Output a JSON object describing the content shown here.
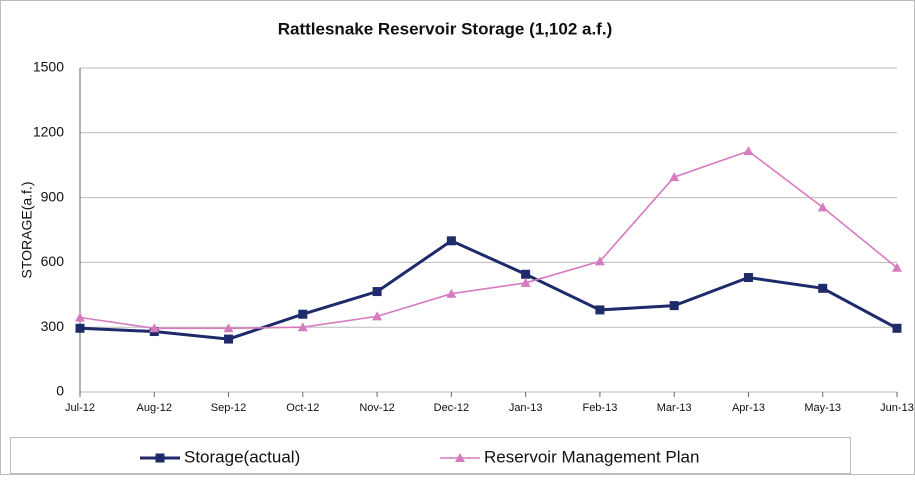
{
  "chart_data": {
    "type": "line",
    "title": "Rattlesnake Reservoir Storage (1,102 a.f.)",
    "y_label": "STORAGE(a.f.)",
    "categories": [
      "Jul-12",
      "Aug-12",
      "Sep-12",
      "Oct-12",
      "Nov-12",
      "Dec-12",
      "Jan-13",
      "Feb-13",
      "Mar-13",
      "Apr-13",
      "May-13",
      "Jun-13"
    ],
    "series": [
      {
        "name": "Storage(actual)",
        "color": "#1f2a6b",
        "marker": "square",
        "values": [
          295,
          280,
          245,
          360,
          465,
          700,
          545,
          380,
          400,
          530,
          480,
          295
        ]
      },
      {
        "name": "Reservoir Management Plan",
        "color": "#d67bc0",
        "marker": "triangle",
        "values": [
          345,
          295,
          295,
          300,
          350,
          455,
          505,
          605,
          995,
          1115,
          855,
          575
        ]
      }
    ],
    "ylim": [
      0,
      1500
    ],
    "yticks": [
      0,
      300,
      600,
      900,
      1200,
      1500
    ],
    "grid": true,
    "legend": "bottom"
  }
}
